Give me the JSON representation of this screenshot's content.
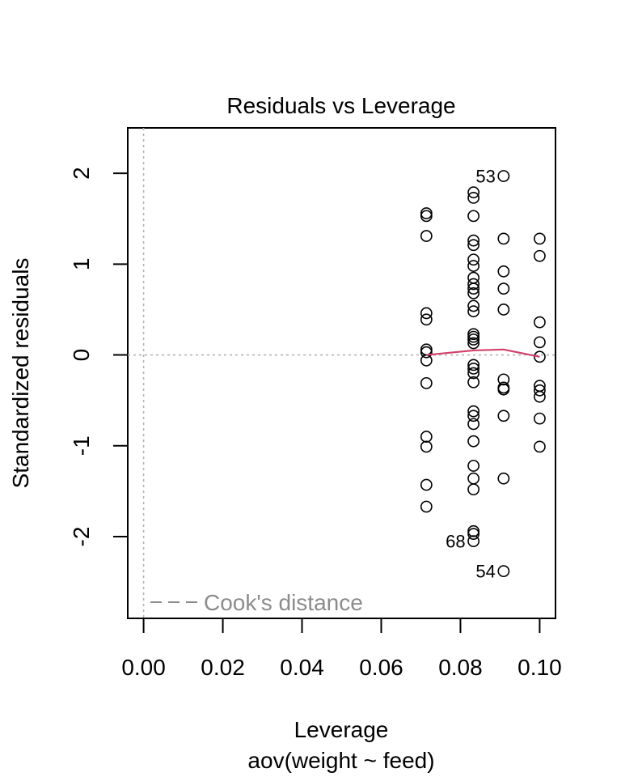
{
  "chart_data": {
    "type": "scatter",
    "title": "Residuals vs Leverage",
    "xlabel": "Leverage",
    "subtitle": "aov(weight ~ feed)",
    "ylabel": "Standardized residuals",
    "xlim": [
      -0.004,
      0.104
    ],
    "ylim": [
      -2.9,
      2.5
    ],
    "x_ticks": [
      0.0,
      0.02,
      0.04,
      0.06,
      0.08,
      0.1
    ],
    "x_tick_labels": [
      "0.00",
      "0.02",
      "0.04",
      "0.06",
      "0.08",
      "0.10"
    ],
    "y_ticks": [
      -2,
      -1,
      0,
      1,
      2
    ],
    "y_tick_labels": [
      "-2",
      "-1",
      "0",
      "1",
      "2"
    ],
    "grid": false,
    "reference_lines": {
      "h0": 0,
      "v0": 0,
      "color": "#b3b3b3",
      "style": "dotted"
    },
    "legend": {
      "placement": "bottom-left",
      "entries": [
        {
          "label": "Cook's distance",
          "color": "#8c8c8c",
          "style": "dashed"
        }
      ]
    },
    "series": [
      {
        "kind": "points",
        "points": [
          {
            "x": 0.0714,
            "y": 1.56
          },
          {
            "x": 0.0714,
            "y": 1.53
          },
          {
            "x": 0.0714,
            "y": 1.31
          },
          {
            "x": 0.0714,
            "y": 0.46
          },
          {
            "x": 0.0714,
            "y": 0.39
          },
          {
            "x": 0.0714,
            "y": 0.06
          },
          {
            "x": 0.0714,
            "y": 0.03
          },
          {
            "x": 0.0714,
            "y": -0.06
          },
          {
            "x": 0.0714,
            "y": -0.31
          },
          {
            "x": 0.0714,
            "y": -0.9
          },
          {
            "x": 0.0714,
            "y": -1.01
          },
          {
            "x": 0.0714,
            "y": -1.43
          },
          {
            "x": 0.0714,
            "y": -1.67
          },
          {
            "x": 0.0833,
            "y": 1.79
          },
          {
            "x": 0.0833,
            "y": 1.73
          },
          {
            "x": 0.0833,
            "y": 1.53
          },
          {
            "x": 0.0833,
            "y": 1.26
          },
          {
            "x": 0.0833,
            "y": 1.21
          },
          {
            "x": 0.0833,
            "y": 1.05
          },
          {
            "x": 0.0833,
            "y": 0.98
          },
          {
            "x": 0.0833,
            "y": 0.85
          },
          {
            "x": 0.0833,
            "y": 0.78
          },
          {
            "x": 0.0833,
            "y": 0.73
          },
          {
            "x": 0.0833,
            "y": 0.68
          },
          {
            "x": 0.0833,
            "y": 0.54
          },
          {
            "x": 0.0833,
            "y": 0.48
          },
          {
            "x": 0.0833,
            "y": 0.23
          },
          {
            "x": 0.0833,
            "y": 0.2
          },
          {
            "x": 0.0833,
            "y": 0.17
          },
          {
            "x": 0.0833,
            "y": 0.13
          },
          {
            "x": 0.0833,
            "y": -0.11
          },
          {
            "x": 0.0833,
            "y": -0.15
          },
          {
            "x": 0.0833,
            "y": -0.2
          },
          {
            "x": 0.0833,
            "y": -0.3
          },
          {
            "x": 0.0833,
            "y": -0.62
          },
          {
            "x": 0.0833,
            "y": -0.67
          },
          {
            "x": 0.0833,
            "y": -0.76
          },
          {
            "x": 0.0833,
            "y": -0.95
          },
          {
            "x": 0.0833,
            "y": -1.22
          },
          {
            "x": 0.0833,
            "y": -1.36
          },
          {
            "x": 0.0833,
            "y": -1.48
          },
          {
            "x": 0.0833,
            "y": -1.94
          },
          {
            "x": 0.0833,
            "y": -1.97
          },
          {
            "x": 0.0833,
            "y": -2.05,
            "label": "68"
          },
          {
            "x": 0.0909,
            "y": 1.97,
            "label": "53"
          },
          {
            "x": 0.0909,
            "y": 1.28
          },
          {
            "x": 0.0909,
            "y": 0.92
          },
          {
            "x": 0.0909,
            "y": 0.73
          },
          {
            "x": 0.0909,
            "y": 0.5
          },
          {
            "x": 0.0909,
            "y": -0.27
          },
          {
            "x": 0.0909,
            "y": -0.36
          },
          {
            "x": 0.0909,
            "y": -0.38
          },
          {
            "x": 0.0909,
            "y": -0.67
          },
          {
            "x": 0.0909,
            "y": -1.36
          },
          {
            "x": 0.0909,
            "y": -2.38,
            "label": "54"
          },
          {
            "x": 0.1,
            "y": 1.28
          },
          {
            "x": 0.1,
            "y": 1.09
          },
          {
            "x": 0.1,
            "y": 0.36
          },
          {
            "x": 0.1,
            "y": 0.14
          },
          {
            "x": 0.1,
            "y": -0.02
          },
          {
            "x": 0.1,
            "y": -0.34
          },
          {
            "x": 0.1,
            "y": -0.39
          },
          {
            "x": 0.1,
            "y": -0.46
          },
          {
            "x": 0.1,
            "y": -0.7
          },
          {
            "x": 0.1,
            "y": -1.01
          }
        ]
      },
      {
        "kind": "smoother",
        "color": "#d0426c",
        "points": [
          {
            "x": 0.0714,
            "y": 0.0
          },
          {
            "x": 0.0833,
            "y": 0.05
          },
          {
            "x": 0.0909,
            "y": 0.06
          },
          {
            "x": 0.1,
            "y": -0.02
          }
        ]
      }
    ]
  }
}
